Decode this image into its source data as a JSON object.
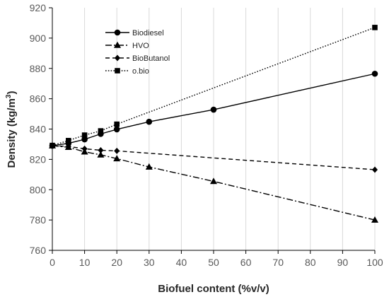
{
  "chart_data": {
    "type": "line",
    "title": "",
    "xlabel": "Biofuel content (%v/v)",
    "ylabel_main": "Density (kg/m",
    "ylabel_sup": "3",
    "ylabel_close": ")",
    "xlim": [
      0,
      100
    ],
    "ylim": [
      760,
      920
    ],
    "xticks": [
      0,
      10,
      20,
      30,
      40,
      50,
      60,
      70,
      80,
      90,
      100
    ],
    "yticks": [
      760,
      780,
      800,
      820,
      840,
      860,
      880,
      900,
      920
    ],
    "grid": "vertical",
    "legend_position": "top-left",
    "series": [
      {
        "name": "Biodiesel",
        "marker": "circle",
        "line_style": "solid",
        "color": "#000000",
        "x": [
          0,
          5,
          10,
          15,
          20,
          30,
          50,
          100
        ],
        "y": [
          829.0,
          830.6,
          833.2,
          836.8,
          839.8,
          844.8,
          852.8,
          876.5
        ]
      },
      {
        "name": "HVO",
        "marker": "triangle",
        "line_style": "dash-dot",
        "color": "#000000",
        "x": [
          0,
          5,
          10,
          15,
          20,
          30,
          50,
          100
        ],
        "y": [
          829.0,
          828.0,
          825.0,
          823.0,
          820.5,
          815.0,
          805.5,
          780.0
        ]
      },
      {
        "name": "BioButanol",
        "marker": "diamond",
        "line_style": "dashed",
        "color": "#000000",
        "x": [
          0,
          5,
          10,
          15,
          20,
          100
        ],
        "y": [
          829.0,
          828.5,
          827.0,
          826.0,
          825.6,
          813.2
        ]
      },
      {
        "name": "o.bio",
        "marker": "square",
        "line_style": "dotted",
        "color": "#000000",
        "x": [
          0,
          5,
          10,
          15,
          20,
          100
        ],
        "y": [
          829.2,
          832.4,
          836.0,
          838.8,
          843.2,
          907.0
        ]
      }
    ]
  }
}
